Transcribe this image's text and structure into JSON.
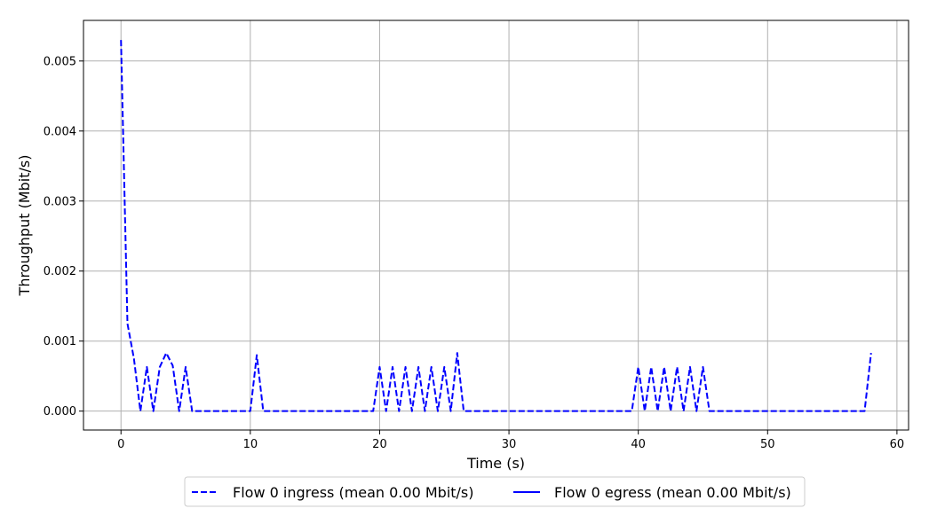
{
  "chart_data": {
    "type": "line",
    "xlabel": "Time (s)",
    "ylabel": "Throughput (Mbit/s)",
    "xlim": [
      -2.9,
      60.9
    ],
    "ylim": [
      -0.00027,
      0.00558
    ],
    "xticks": [
      0,
      10,
      20,
      30,
      40,
      50,
      60
    ],
    "xtick_labels": [
      "0",
      "10",
      "20",
      "30",
      "40",
      "50",
      "60"
    ],
    "yticks": [
      0,
      0.001,
      0.002,
      0.003,
      0.004,
      0.005
    ],
    "ytick_labels": [
      "0.000",
      "0.001",
      "0.002",
      "0.003",
      "0.004",
      "0.005"
    ],
    "grid": true,
    "legend_position": "bottom-center",
    "series": [
      {
        "name": "Flow 0 ingress (mean 0.00 Mbit/s)",
        "color": "#0000ff",
        "style": "dashed",
        "x": [
          0,
          0.5,
          1.0,
          1.5,
          2.0,
          2.5,
          3.0,
          3.5,
          4.0,
          4.5,
          5.0,
          5.5,
          6.0,
          10.0,
          10.5,
          11.0,
          19.5,
          20.0,
          20.5,
          21.0,
          21.5,
          22.0,
          22.5,
          23.0,
          23.5,
          24.0,
          24.5,
          25.0,
          25.5,
          26.0,
          26.5,
          27.0,
          39.5,
          40.0,
          40.5,
          41.0,
          41.5,
          42.0,
          42.5,
          43.0,
          43.5,
          44.0,
          44.5,
          45.0,
          45.5,
          46.0,
          57.5,
          58.0
        ],
        "y": [
          0.0053,
          0.00125,
          0.00075,
          0.0,
          0.00063,
          0.0,
          0.00063,
          0.00083,
          0.00065,
          0.0,
          0.00063,
          0.0,
          0.0,
          0.0,
          0.0008,
          0.0,
          0.0,
          0.00063,
          0.0,
          0.00063,
          0.0,
          0.00063,
          0.0,
          0.00063,
          0.0,
          0.00063,
          0.0,
          0.00063,
          0.0,
          0.00083,
          0.0,
          0.0,
          0.0,
          0.00063,
          0.0,
          0.00063,
          0.0,
          0.00063,
          0.0,
          0.00063,
          0.0,
          0.00063,
          0.0,
          0.00063,
          0.0,
          0.0,
          0.0,
          0.00083
        ]
      },
      {
        "name": "Flow 0 egress (mean 0.00 Mbit/s)",
        "color": "#0000ff",
        "style": "solid",
        "x": [],
        "y": []
      }
    ]
  }
}
